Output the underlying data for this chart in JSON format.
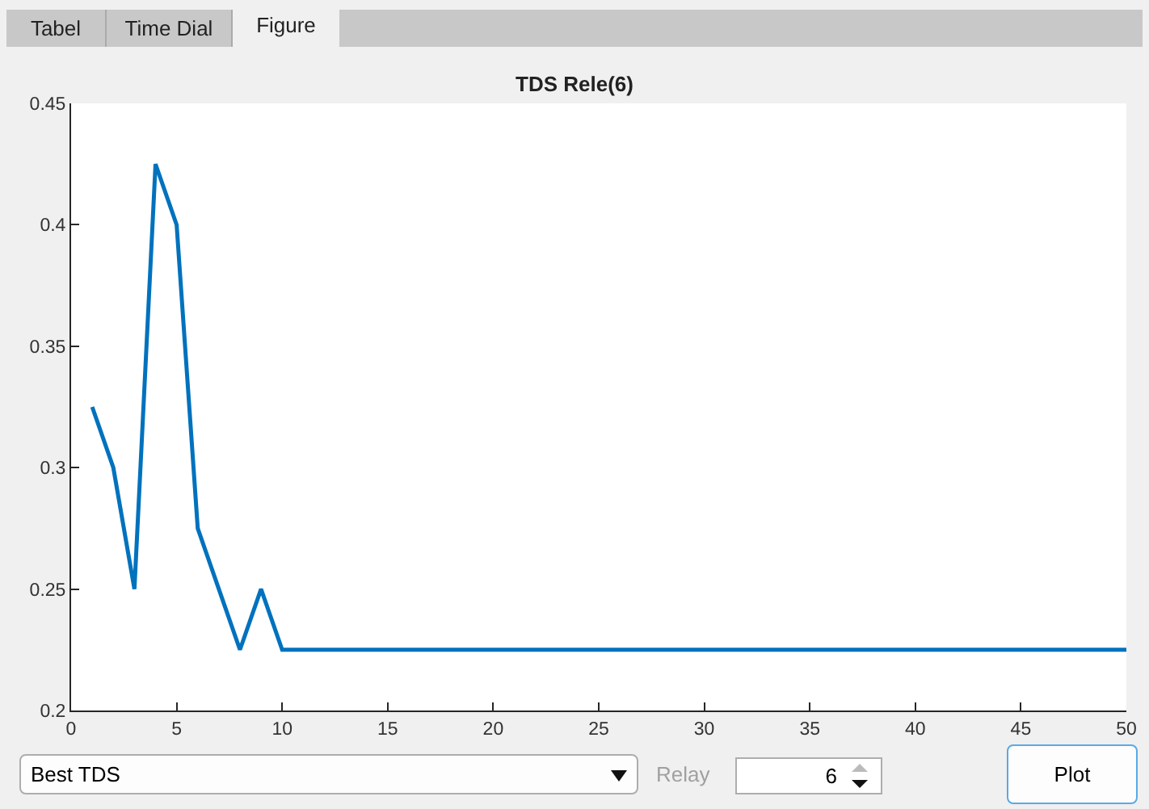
{
  "chart_data": {
    "type": "line",
    "title": "TDS Rele(6)",
    "x": [
      1,
      2,
      3,
      4,
      5,
      6,
      7,
      8,
      9,
      10,
      50
    ],
    "values": [
      0.325,
      0.3,
      0.25,
      0.425,
      0.4,
      0.275,
      0.25,
      0.225,
      0.25,
      0.225,
      0.225
    ],
    "color": "#0072bd",
    "xlim": [
      0,
      50
    ],
    "xticks": [
      0,
      5,
      10,
      15,
      20,
      25,
      30,
      35,
      40,
      45,
      50
    ],
    "ylim": [
      0.2,
      0.45
    ],
    "yticks": [
      0.2,
      0.25,
      0.3,
      0.35,
      0.4,
      0.45
    ],
    "grid": false,
    "marker": "none",
    "line_style": "solid",
    "annotations": [
      "Tabel",
      "Time Dial",
      "Figure",
      "Best TDS",
      "Relay",
      "6",
      "Plot"
    ]
  }
}
